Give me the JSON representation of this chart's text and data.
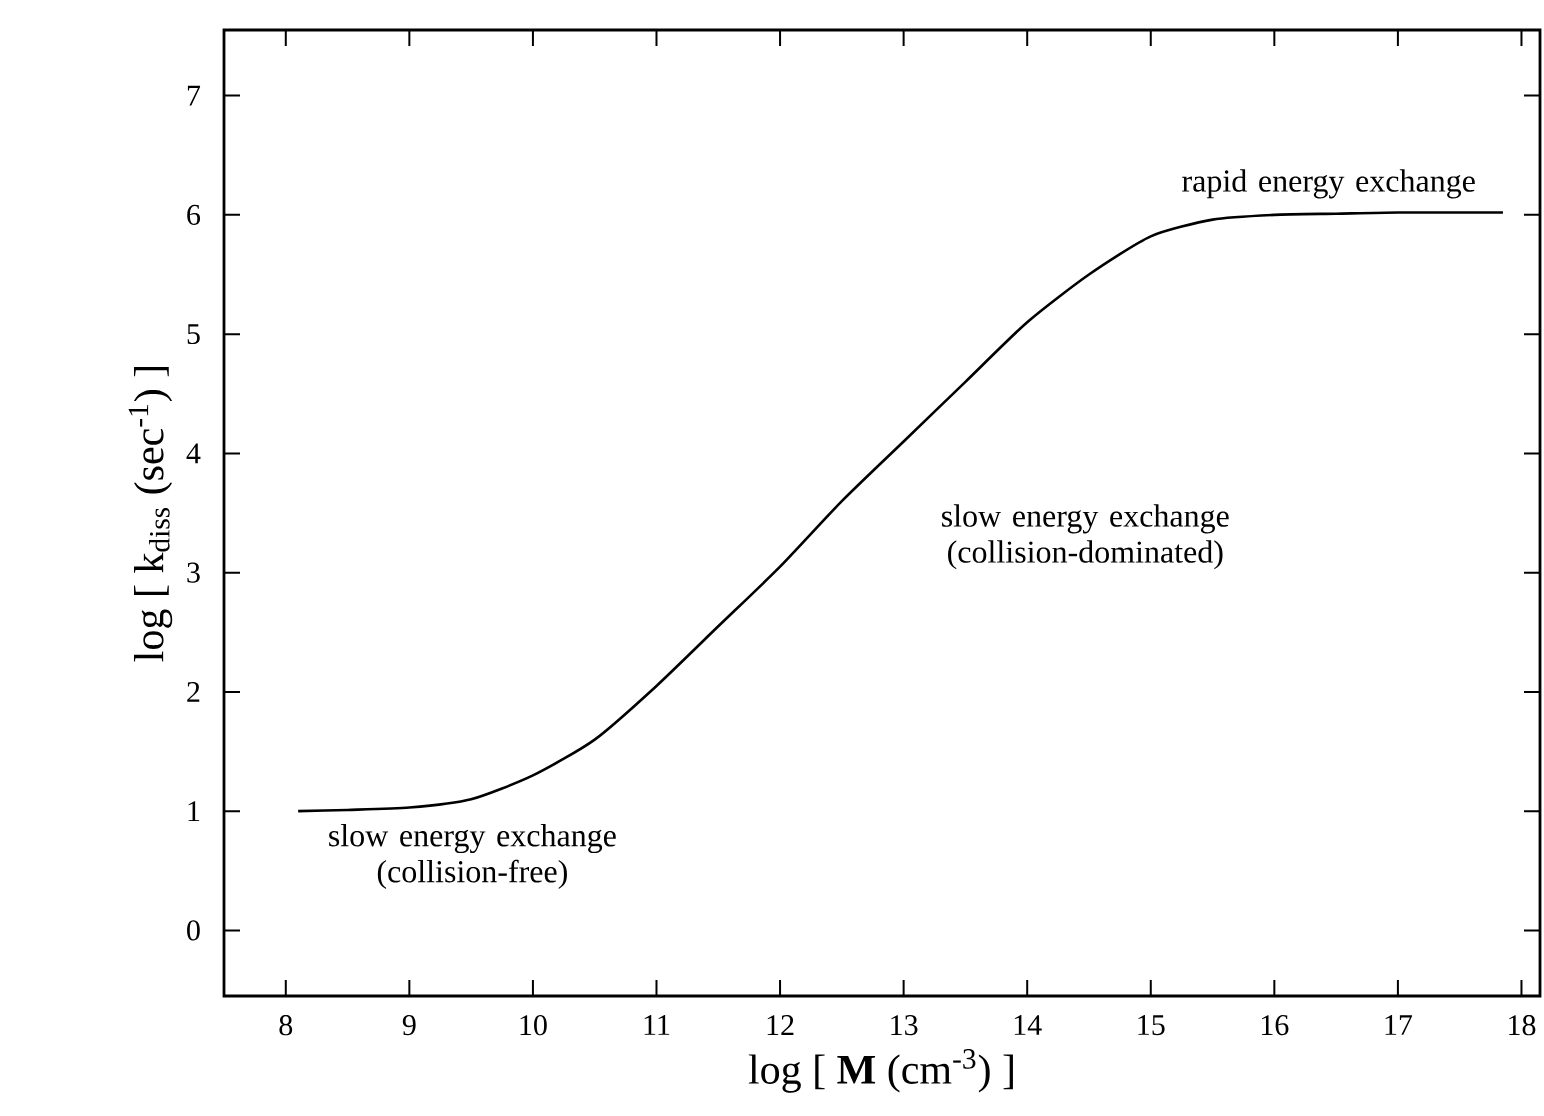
{
  "chart_data": {
    "type": "line",
    "xlabel": "log [ **M** (cm$^{-3}$) ]",
    "ylabel": "log [ k$_{diss}$ (sec$^{-1}$) ]",
    "xlim": [
      7.5,
      18.15
    ],
    "ylim": [
      -0.55,
      7.55
    ],
    "xticks": [
      8,
      9,
      10,
      11,
      12,
      13,
      14,
      15,
      16,
      17,
      18
    ],
    "yticks": [
      0,
      1,
      2,
      3,
      4,
      5,
      6,
      7
    ],
    "series": [
      {
        "color": "#000000",
        "x": [
          8.1,
          8.5,
          9,
          9.5,
          10,
          10.5,
          11,
          11.5,
          12,
          12.5,
          13,
          13.5,
          14,
          14.5,
          15,
          15.5,
          16,
          16.5,
          17,
          17.85
        ],
        "values": [
          1.0,
          1.01,
          1.03,
          1.1,
          1.3,
          1.6,
          2.05,
          2.55,
          3.05,
          3.6,
          4.1,
          4.6,
          5.1,
          5.5,
          5.82,
          5.96,
          6.0,
          6.01,
          6.02,
          6.02
        ]
      }
    ],
    "annotations": [
      "rapid energy exchange",
      "slow energy exchange (collision-dominated)",
      "slow energy exchange (collision-free)"
    ],
    "marker": "none",
    "line_style": "solid",
    "grid": false
  }
}
